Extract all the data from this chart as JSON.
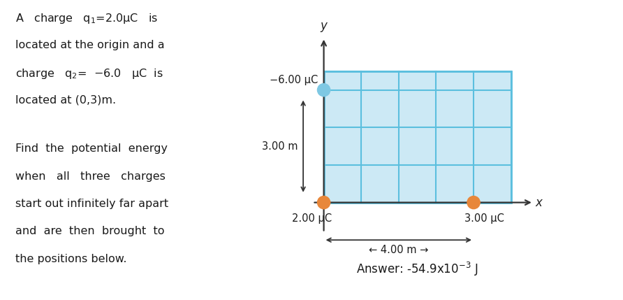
{
  "fig_width": 8.92,
  "fig_height": 4.29,
  "bg_color": "#ffffff",
  "grid_color": "#5bbfde",
  "grid_bg": "#cce9f5",
  "charge1_label": "2.00 μC",
  "charge1_color": "#e8873a",
  "charge2_label": "−6.00 μC",
  "charge2_color": "#7ec8e3",
  "charge3_label": "3.00 μC",
  "charge3_color": "#e8873a",
  "answer_text": "Answer: -54.9x10",
  "answer_exp": "-3",
  "answer_unit": " J",
  "xlim": [
    -1.0,
    6.0
  ],
  "ylim": [
    -1.8,
    5.0
  ],
  "arrow_3m_label": "3.00 m",
  "arrow_4m_label": "4.00 m"
}
